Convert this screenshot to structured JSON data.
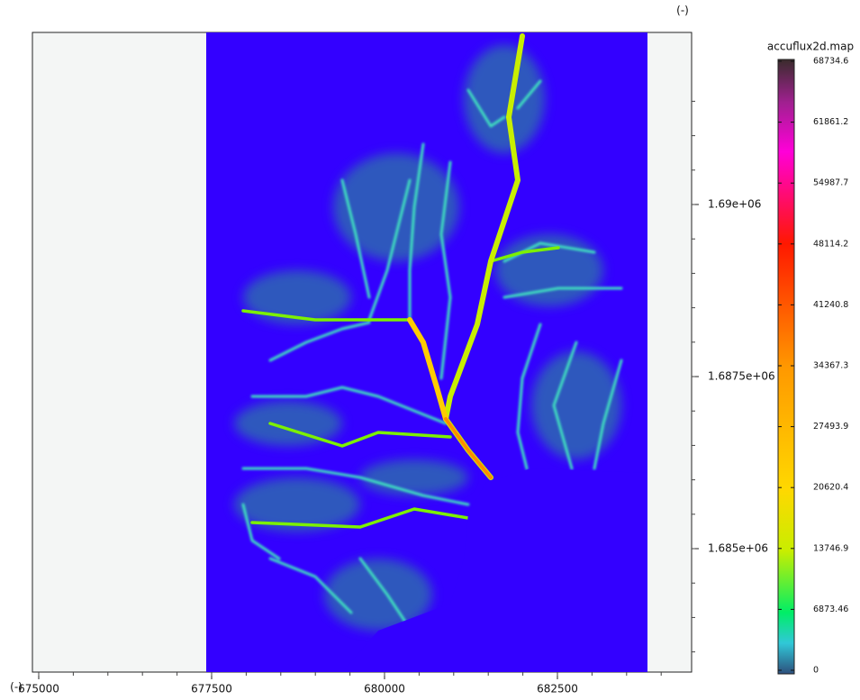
{
  "chart_data": {
    "type": "raster",
    "x_label": "(-)",
    "y_label": "(-)",
    "xlim": [
      674909,
      684440
    ],
    "xticks": [
      675000,
      677500,
      680000,
      682500
    ],
    "ylim": [
      1683207,
      1692500
    ],
    "yticks": [
      {
        "value": 1690000,
        "label": "1.69e+06"
      },
      {
        "value": 1687500,
        "label": "1.6875e+06"
      },
      {
        "value": 1685000,
        "label": "1.685e+06"
      }
    ],
    "colorbar": {
      "title": "accuflux2d.map",
      "lim": [
        -407,
        68937
      ],
      "ticks": [
        0,
        6873.46,
        13746.9,
        20620.4,
        27493.9,
        34367.3,
        41240.8,
        48114.2,
        54987.7,
        61861.2,
        68734.6
      ]
    }
  }
}
